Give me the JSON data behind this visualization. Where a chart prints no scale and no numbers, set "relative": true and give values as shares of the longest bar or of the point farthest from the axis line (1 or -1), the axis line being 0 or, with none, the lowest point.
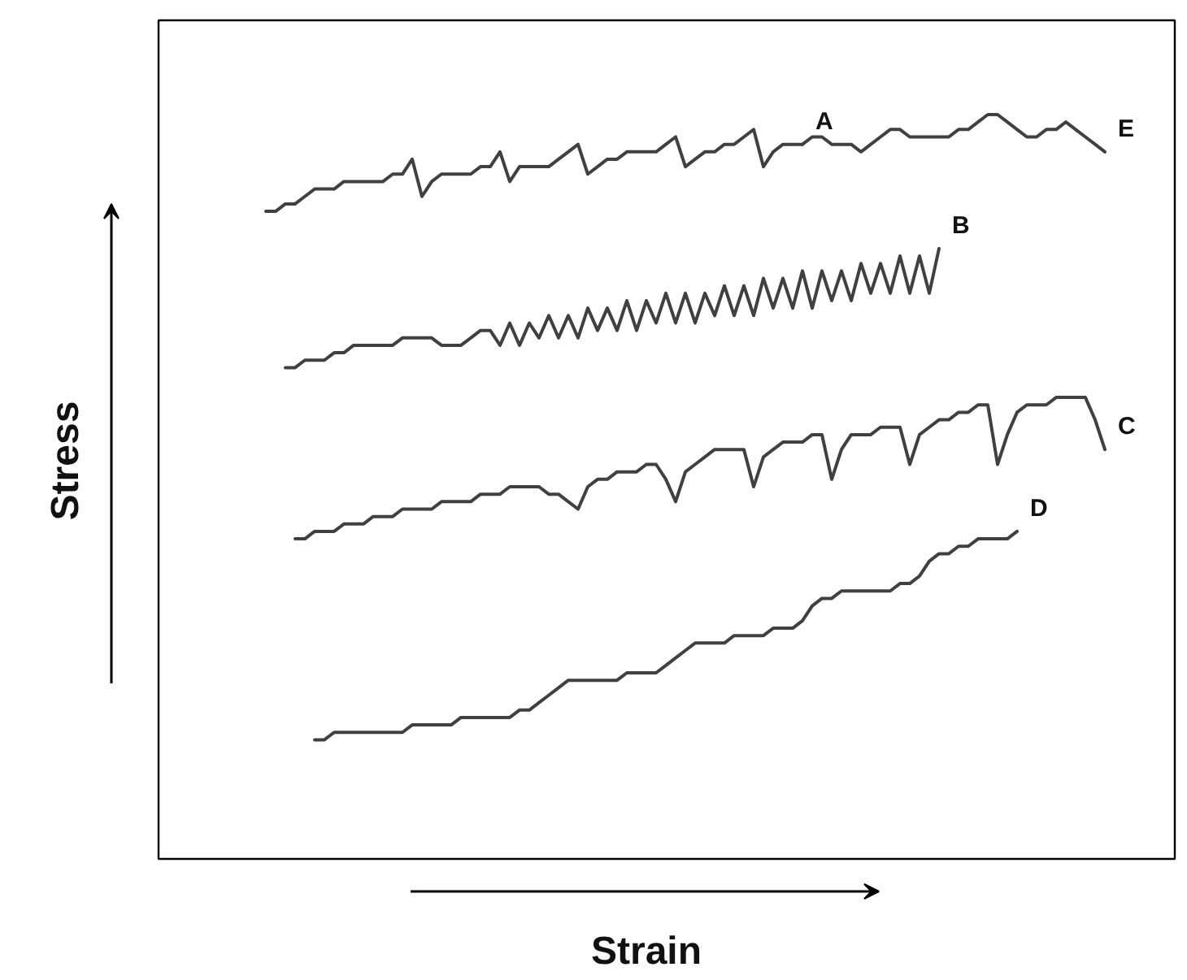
{
  "chart_data": {
    "type": "line",
    "relative": true,
    "xlabel": "Strain",
    "ylabel": "Stress",
    "categories": [
      null,
      null,
      null,
      null,
      null,
      null,
      null,
      null,
      null,
      null,
      null,
      null,
      null,
      null,
      null,
      null,
      null,
      null,
      null,
      null,
      null,
      null,
      null,
      null,
      null,
      null,
      null,
      null,
      null,
      null,
      null,
      null,
      null,
      null,
      null,
      null,
      null,
      null,
      null,
      null,
      null,
      null,
      null,
      null,
      null,
      null,
      null,
      null,
      null,
      null,
      null,
      null,
      null,
      null,
      null,
      null,
      null,
      null,
      null,
      null,
      null,
      null,
      null,
      null,
      null,
      null,
      null,
      null,
      null,
      null,
      null,
      null,
      null,
      null,
      null,
      null,
      null,
      null,
      null,
      null,
      null,
      null,
      null,
      null,
      null,
      null,
      null,
      null,
      null,
      null,
      null,
      null,
      null,
      null,
      null,
      null,
      null,
      null,
      null,
      null,
      null,
      null,
      null,
      null
    ],
    "series": [
      {
        "name": "A",
        "color": "#404040",
        "values": [
          null,
          null,
          null,
          null,
          null,
          null,
          null,
          null,
          null,
          null,
          0.87,
          0.87,
          0.88,
          0.88,
          0.89,
          0.9,
          0.9,
          0.9,
          0.91,
          0.91,
          0.91,
          0.91,
          0.91,
          0.92,
          0.92,
          0.94,
          0.89,
          0.91,
          0.92,
          0.92,
          0.92,
          0.92,
          0.93,
          0.93,
          0.95,
          0.91,
          0.93,
          0.93,
          0.93,
          0.93,
          0.94,
          0.95,
          0.96,
          0.92,
          0.93,
          0.94,
          0.94,
          0.95,
          0.95,
          0.95,
          0.95,
          0.96,
          0.97,
          0.93,
          0.94,
          0.95,
          0.95,
          0.96,
          0.96,
          0.97,
          0.98,
          0.93,
          0.95,
          0.96,
          0.96,
          0.96,
          null,
          null,
          null,
          null,
          null,
          null,
          null,
          null,
          null,
          null,
          null,
          null,
          null,
          null,
          null,
          null,
          null,
          null,
          null,
          null,
          null,
          null,
          null,
          null,
          null,
          null,
          null,
          null,
          null,
          null,
          null,
          null,
          null,
          null,
          null,
          null,
          null,
          null
        ]
      },
      {
        "name": "E",
        "color": "#404040",
        "values": [
          null,
          null,
          null,
          null,
          null,
          null,
          null,
          null,
          null,
          null,
          null,
          null,
          null,
          null,
          null,
          null,
          null,
          null,
          null,
          null,
          null,
          null,
          null,
          null,
          null,
          null,
          null,
          null,
          null,
          null,
          null,
          null,
          null,
          null,
          null,
          null,
          null,
          null,
          null,
          null,
          null,
          null,
          null,
          null,
          null,
          null,
          null,
          null,
          null,
          null,
          null,
          null,
          null,
          null,
          null,
          null,
          null,
          null,
          null,
          null,
          null,
          null,
          null,
          null,
          null,
          0.96,
          0.97,
          0.97,
          0.96,
          0.96,
          0.96,
          0.95,
          0.96,
          0.97,
          0.98,
          0.98,
          0.97,
          0.97,
          0.97,
          0.97,
          0.97,
          0.98,
          0.98,
          0.99,
          1.0,
          1.0,
          0.99,
          0.98,
          0.97,
          0.97,
          0.98,
          0.98,
          0.99,
          0.98,
          0.97,
          0.96,
          0.95,
          null,
          null,
          null,
          null,
          null,
          null,
          null
        ]
      },
      {
        "name": "B",
        "color": "#404040",
        "values": [
          null,
          null,
          null,
          null,
          null,
          null,
          null,
          null,
          null,
          null,
          null,
          null,
          0.66,
          0.66,
          0.67,
          0.67,
          0.67,
          0.68,
          0.68,
          0.69,
          0.69,
          0.69,
          0.69,
          0.69,
          0.7,
          0.7,
          0.7,
          0.7,
          0.69,
          0.69,
          0.69,
          0.7,
          0.71,
          0.71,
          0.69,
          0.72,
          0.69,
          0.72,
          0.7,
          0.73,
          0.7,
          0.73,
          0.7,
          0.74,
          0.71,
          0.74,
          0.71,
          0.75,
          0.71,
          0.75,
          0.72,
          0.76,
          0.72,
          0.76,
          0.72,
          0.76,
          0.73,
          0.77,
          0.73,
          0.77,
          0.73,
          0.78,
          0.74,
          0.78,
          0.74,
          0.79,
          0.74,
          0.79,
          0.75,
          0.79,
          0.75,
          0.8,
          0.76,
          0.8,
          0.76,
          0.81,
          0.76,
          0.81,
          0.76,
          0.82,
          null,
          null,
          null,
          null,
          null,
          null,
          null,
          null,
          null,
          null,
          null,
          null,
          null,
          null,
          null,
          null,
          null,
          null,
          null,
          null,
          null,
          null,
          null,
          null
        ]
      },
      {
        "name": "C",
        "color": "#404040",
        "values": [
          null,
          null,
          null,
          null,
          null,
          null,
          null,
          null,
          null,
          null,
          null,
          null,
          null,
          0.43,
          0.43,
          0.44,
          0.44,
          0.44,
          0.45,
          0.45,
          0.45,
          0.46,
          0.46,
          0.46,
          0.47,
          0.47,
          0.47,
          0.47,
          0.48,
          0.48,
          0.48,
          0.48,
          0.49,
          0.49,
          0.49,
          0.5,
          0.5,
          0.5,
          0.5,
          0.49,
          0.49,
          0.48,
          0.47,
          0.5,
          0.51,
          0.51,
          0.52,
          0.52,
          0.52,
          0.53,
          0.53,
          0.51,
          0.48,
          0.52,
          0.53,
          0.54,
          0.55,
          0.55,
          0.55,
          0.55,
          0.5,
          0.54,
          0.55,
          0.56,
          0.56,
          0.56,
          0.57,
          0.57,
          0.51,
          0.55,
          0.57,
          0.57,
          0.57,
          0.58,
          0.58,
          0.58,
          0.53,
          0.57,
          0.58,
          0.59,
          0.59,
          0.6,
          0.6,
          0.61,
          0.61,
          0.53,
          0.57,
          0.6,
          0.61,
          0.61,
          0.61,
          0.62,
          0.62,
          0.62,
          0.62,
          0.59,
          0.55,
          null,
          null,
          null,
          null,
          null,
          null,
          null
        ]
      },
      {
        "name": "D",
        "color": "#404040",
        "values": [
          null,
          null,
          null,
          null,
          null,
          null,
          null,
          null,
          null,
          null,
          null,
          null,
          null,
          null,
          null,
          0.16,
          0.16,
          0.17,
          0.17,
          0.17,
          0.17,
          0.17,
          0.17,
          0.17,
          0.17,
          0.18,
          0.18,
          0.18,
          0.18,
          0.18,
          0.19,
          0.19,
          0.19,
          0.19,
          0.19,
          0.19,
          0.2,
          0.2,
          0.21,
          0.22,
          0.23,
          0.24,
          0.24,
          0.24,
          0.24,
          0.24,
          0.24,
          0.25,
          0.25,
          0.25,
          0.25,
          0.26,
          0.27,
          0.28,
          0.29,
          0.29,
          0.29,
          0.29,
          0.3,
          0.3,
          0.3,
          0.3,
          0.31,
          0.31,
          0.31,
          0.32,
          0.34,
          0.35,
          0.35,
          0.36,
          0.36,
          0.36,
          0.36,
          0.36,
          0.36,
          0.37,
          0.37,
          0.38,
          0.4,
          0.41,
          0.41,
          0.42,
          0.42,
          0.43,
          0.43,
          0.43,
          0.43,
          0.44,
          null,
          null,
          null,
          null,
          null,
          null,
          null,
          null,
          null,
          null,
          null,
          null,
          null,
          null,
          null,
          null
        ]
      }
    ]
  }
}
